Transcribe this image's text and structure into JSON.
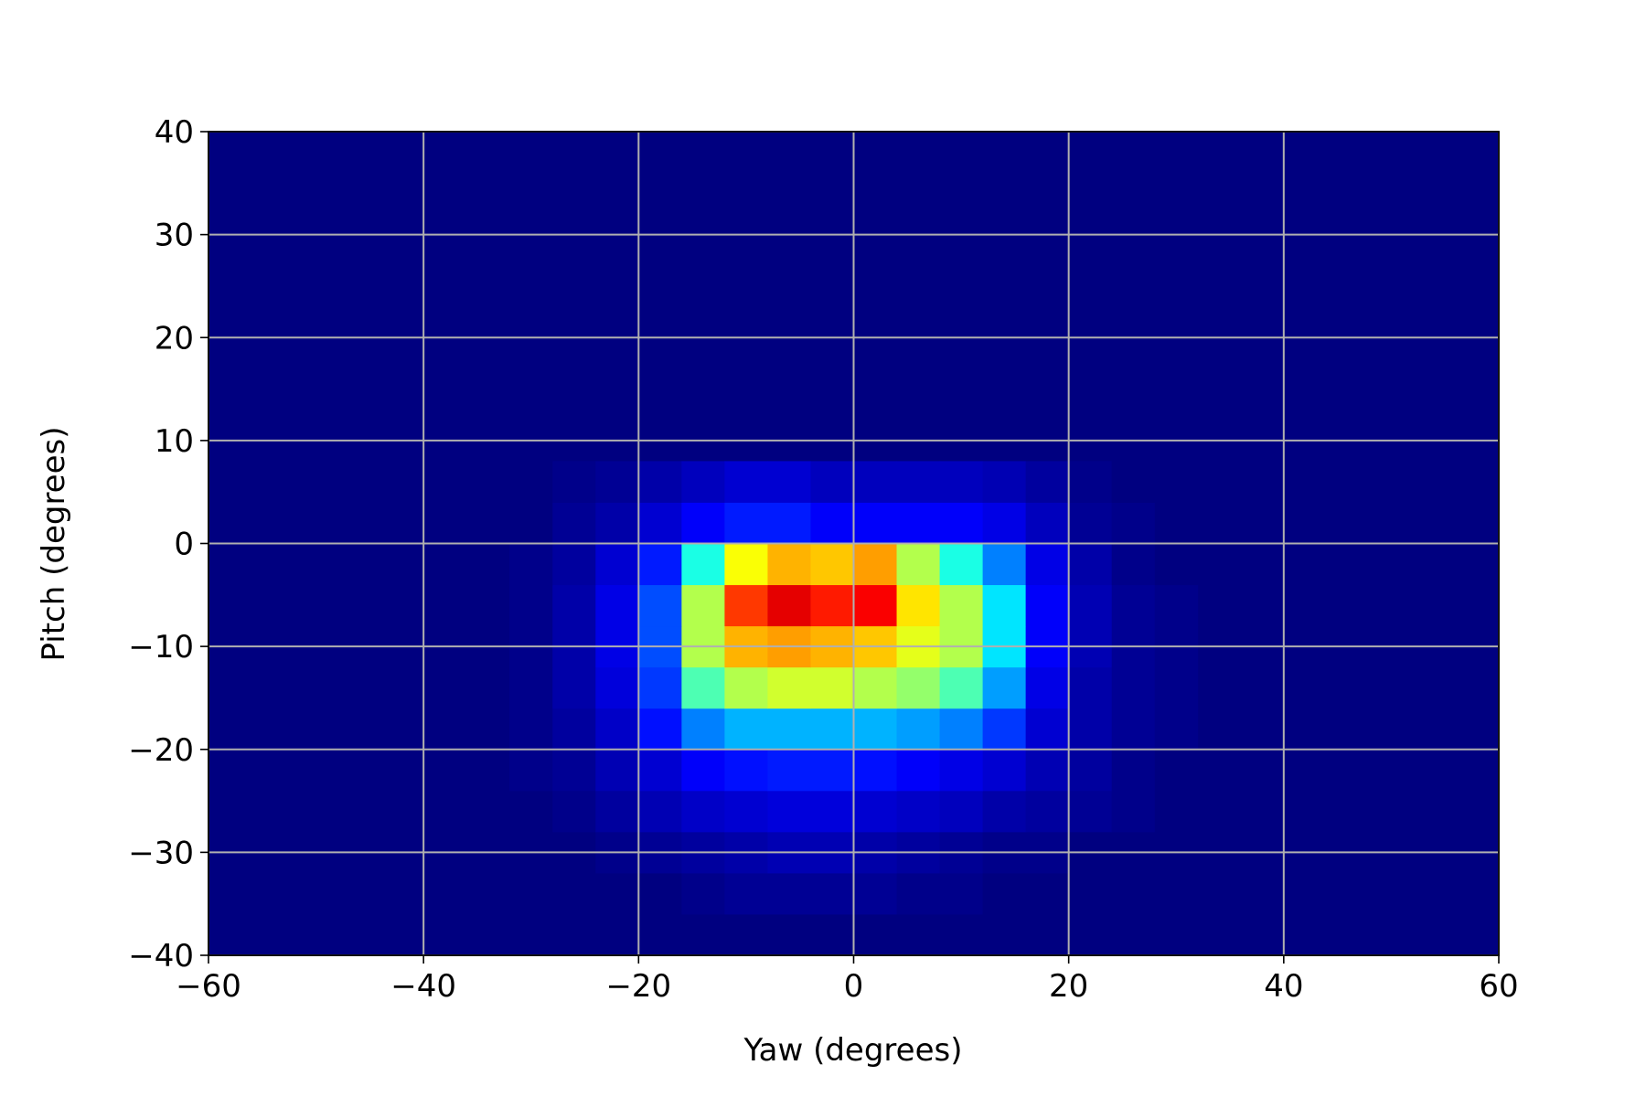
{
  "chart_data": {
    "type": "heatmap",
    "x_label": "Yaw (degrees)",
    "y_label": "Pitch (degrees)",
    "xlim": [
      -60,
      60
    ],
    "ylim": [
      -40,
      40
    ],
    "xticks": [
      {
        "value": -60,
        "label": "−60"
      },
      {
        "value": -40,
        "label": "−40"
      },
      {
        "value": -20,
        "label": "−20"
      },
      0,
      20,
      40,
      60
    ],
    "yticks": [
      {
        "value": -40,
        "label": "−40"
      },
      {
        "value": -30,
        "label": "−30"
      },
      {
        "value": -20,
        "label": "−20"
      },
      {
        "value": -10,
        "label": "−10"
      },
      0,
      10,
      20,
      30,
      40
    ],
    "grid": true,
    "grid_color": "#b0b0b0",
    "colormap": "jet",
    "vlim": [
      0,
      100
    ],
    "xbins": [
      -32,
      -28,
      -24,
      -20,
      -16,
      -12,
      -8,
      -4,
      0,
      4,
      8,
      12,
      16,
      20,
      24,
      28,
      32
    ],
    "ybins": [
      -36,
      -32,
      -28,
      -24,
      -20,
      -16,
      -12,
      -8,
      -4,
      0,
      4,
      8
    ],
    "values": [
      [
        0,
        0,
        0,
        0,
        1,
        2,
        2,
        2,
        2,
        1,
        1,
        0,
        0,
        0,
        0,
        0
      ],
      [
        0,
        0,
        1,
        2,
        3,
        4,
        5,
        5,
        4,
        3,
        2,
        1,
        1,
        0,
        0,
        0
      ],
      [
        0,
        1,
        3,
        5,
        7,
        8,
        9,
        9,
        8,
        7,
        6,
        4,
        3,
        2,
        1,
        0
      ],
      [
        1,
        2,
        5,
        8,
        12,
        14,
        15,
        15,
        14,
        12,
        10,
        8,
        5,
        3,
        1,
        0
      ],
      [
        1,
        3,
        7,
        14,
        25,
        30,
        30,
        30,
        30,
        28,
        25,
        18,
        8,
        4,
        2,
        1
      ],
      [
        1,
        4,
        9,
        18,
        45,
        55,
        58,
        58,
        55,
        52,
        45,
        28,
        10,
        4,
        2,
        1
      ],
      [
        1,
        4,
        10,
        20,
        55,
        70,
        72,
        70,
        68,
        60,
        55,
        35,
        12,
        5,
        2,
        1
      ],
      [
        1,
        4,
        10,
        20,
        55,
        82,
        90,
        85,
        88,
        65,
        55,
        35,
        12,
        5,
        2,
        1
      ],
      [
        1,
        3,
        8,
        15,
        40,
        62,
        70,
        68,
        72,
        55,
        40,
        25,
        10,
        4,
        1,
        0
      ],
      [
        0,
        2,
        4,
        8,
        12,
        15,
        15,
        12,
        12,
        12,
        12,
        10,
        6,
        2,
        1,
        0
      ],
      [
        0,
        1,
        2,
        4,
        6,
        8,
        8,
        6,
        6,
        6,
        6,
        5,
        3,
        1,
        0,
        0
      ]
    ]
  }
}
